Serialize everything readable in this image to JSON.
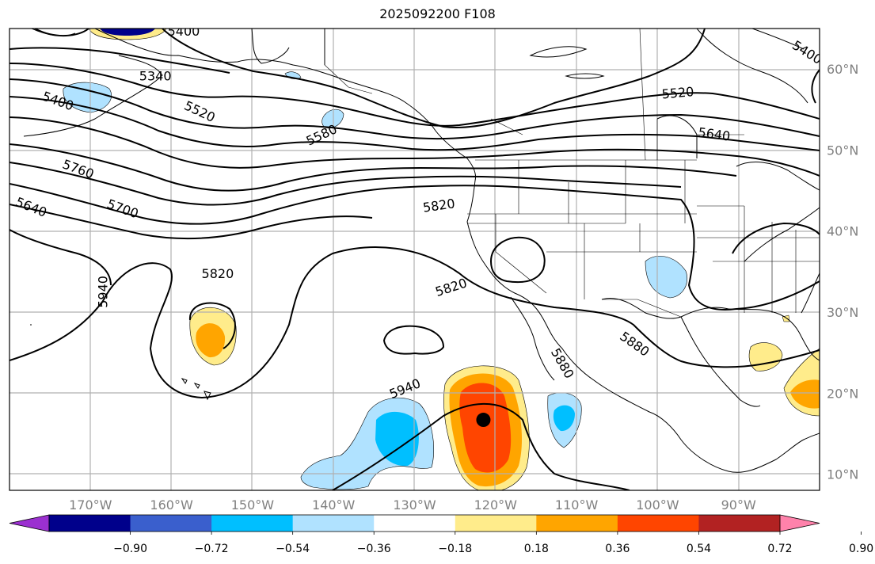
{
  "title": "2025092200 F108",
  "map": {
    "projection": "equirectangular",
    "lon_range": [
      -180,
      -80
    ],
    "lat_range": [
      8,
      65
    ],
    "lon_ticks": [
      {
        "value": -170,
        "label": "170°W"
      },
      {
        "value": -160,
        "label": "160°W"
      },
      {
        "value": -150,
        "label": "150°W"
      },
      {
        "value": -140,
        "label": "140°W"
      },
      {
        "value": -130,
        "label": "130°W"
      },
      {
        "value": -120,
        "label": "120°W"
      },
      {
        "value": -110,
        "label": "110°W"
      },
      {
        "value": -100,
        "label": "100°W"
      },
      {
        "value": -90,
        "label": "90°W"
      }
    ],
    "lat_ticks": [
      {
        "value": 10,
        "label": "10°N"
      },
      {
        "value": 20,
        "label": "20°N"
      },
      {
        "value": 30,
        "label": "30°N"
      },
      {
        "value": 40,
        "label": "40°N"
      },
      {
        "value": 50,
        "label": "50°N"
      },
      {
        "value": 60,
        "label": "60°N"
      }
    ],
    "grid": true,
    "contour_labels": [
      {
        "text": "5340",
        "lon": -162,
        "lat": 59.2,
        "angle": 0
      },
      {
        "text": "5400",
        "lon": -174,
        "lat": 56.1,
        "angle": 20
      },
      {
        "text": "5400",
        "lon": -158.5,
        "lat": 64.7,
        "angle": 0
      },
      {
        "text": "5400",
        "lon": -81.5,
        "lat": 62.1,
        "angle": 32
      },
      {
        "text": "5520",
        "lon": -156.5,
        "lat": 54.8,
        "angle": 25
      },
      {
        "text": "5520",
        "lon": -97.5,
        "lat": 57.1,
        "angle": -5
      },
      {
        "text": "5580",
        "lon": -141.5,
        "lat": 51.9,
        "angle": -25
      },
      {
        "text": "5640",
        "lon": -177.3,
        "lat": 43,
        "angle": 22
      },
      {
        "text": "5640",
        "lon": -93,
        "lat": 52,
        "angle": 8
      },
      {
        "text": "5700",
        "lon": -166,
        "lat": 42.8,
        "angle": 20
      },
      {
        "text": "5760",
        "lon": -171.5,
        "lat": 47.7,
        "angle": 20
      },
      {
        "text": "5820",
        "lon": -127,
        "lat": 43.2,
        "angle": -8
      },
      {
        "text": "5820",
        "lon": -125.5,
        "lat": 33.1,
        "angle": -18
      },
      {
        "text": "5820",
        "lon": -154.3,
        "lat": 34.8,
        "angle": 0
      },
      {
        "text": "5880",
        "lon": -102.8,
        "lat": 26.1,
        "angle": 35
      },
      {
        "text": "5880",
        "lon": -111.7,
        "lat": 23.7,
        "angle": 60
      },
      {
        "text": "5940",
        "lon": -168.5,
        "lat": 32.5,
        "angle": -90
      },
      {
        "text": "5940",
        "lon": -131.2,
        "lat": 20.6,
        "angle": -22
      }
    ],
    "storm_center": {
      "lon": -121.5,
      "lat": 16.7,
      "color": "#000000"
    }
  },
  "anomaly_fill": {
    "levels": [
      -0.9,
      -0.72,
      -0.54,
      -0.36,
      -0.18,
      0.18,
      0.36,
      0.54,
      0.72,
      0.9
    ],
    "colors": [
      "#9b30d0",
      "#00008b",
      "#3a5fcd",
      "#00bfff",
      "#b0e2ff",
      "#ffffff",
      "#ffec8b",
      "#ffa500",
      "#ff4500",
      "#b22222",
      "#ff82ab"
    ],
    "positive_colors": {
      "0.18": "#ffec8b",
      "0.36": "#ffa500",
      "0.54": "#ff4500"
    },
    "negative_colors": {
      "-0.18": "#b0e2ff",
      "-0.36": "#00bfff"
    }
  },
  "colorbar": {
    "tick_labels": [
      "−0.90",
      "−0.72",
      "−0.54",
      "−0.36",
      "−0.18",
      "0.18",
      "0.36",
      "0.54",
      "0.72",
      "0.90"
    ],
    "extend": "both"
  }
}
